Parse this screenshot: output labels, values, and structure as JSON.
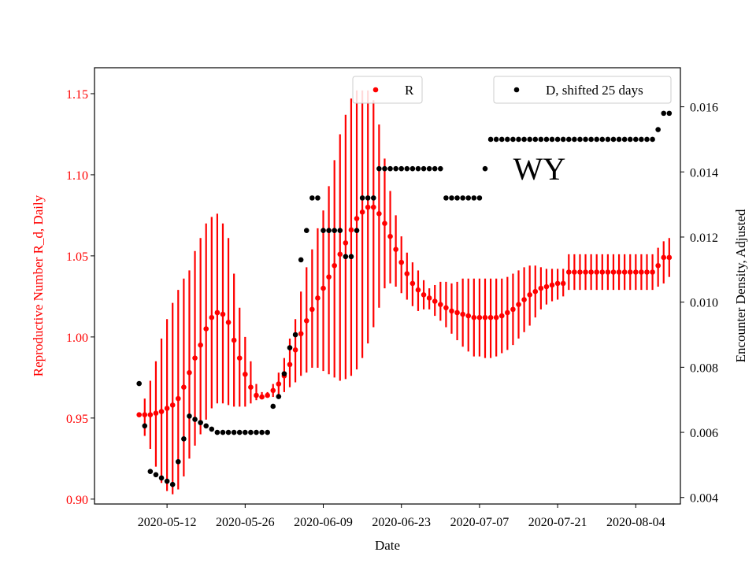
{
  "chart_data": {
    "type": "scatter",
    "xlabel": "Date",
    "ylabel_left": "Reproductive Number R_d, Daily",
    "ylabel_right": "Encounter Density, Adjusted",
    "annotation": "WY",
    "x_ticks": [
      "2020-05-12",
      "2020-05-26",
      "2020-06-09",
      "2020-06-23",
      "2020-07-07",
      "2020-07-21",
      "2020-08-04"
    ],
    "y_left_ticks": [
      "0.90",
      "0.95",
      "1.00",
      "1.05",
      "1.10",
      "1.15"
    ],
    "y_right_ticks": [
      "0.004",
      "0.006",
      "0.008",
      "0.010",
      "0.012",
      "0.014",
      "0.016"
    ],
    "y_left_range": [
      0.897,
      1.166
    ],
    "y_right_range": [
      0.0038,
      0.0172
    ],
    "x_range": [
      "2020-04-29",
      "2020-08-12"
    ],
    "colors": {
      "r_series": "#ff0000",
      "d_series": "#000000",
      "left_axis_text": "#ff0000",
      "right_axis_text": "#000000"
    },
    "legend_left": {
      "label": "R",
      "placement": "top-center"
    },
    "legend_right": {
      "label": "D, shifted 25 days",
      "placement": "top-right"
    },
    "series_r": {
      "name": "R",
      "start_date": "2020-05-07",
      "values": [
        0.952,
        0.952,
        0.952,
        0.953,
        0.954,
        0.956,
        0.958,
        0.962,
        0.969,
        0.978,
        0.987,
        0.995,
        1.005,
        1.012,
        1.015,
        1.014,
        1.009,
        0.998,
        0.987,
        0.977,
        0.969,
        0.964,
        0.963,
        0.964,
        0.967,
        0.971,
        0.976,
        0.983,
        0.992,
        1.002,
        1.01,
        1.017,
        1.024,
        1.03,
        1.037,
        1.044,
        1.051,
        1.058,
        1.066,
        1.073,
        1.077,
        1.08,
        1.08,
        1.076,
        1.07,
        1.062,
        1.054,
        1.046,
        1.039,
        1.033,
        1.029,
        1.026,
        1.024,
        1.022,
        1.02,
        1.018,
        1.016,
        1.015,
        1.014,
        1.013,
        1.012,
        1.012,
        1.012,
        1.012,
        1.012,
        1.013,
        1.015,
        1.017,
        1.02,
        1.023,
        1.026,
        1.028,
        1.03,
        1.031,
        1.032,
        1.033,
        1.033,
        1.04,
        1.04,
        1.04,
        1.04,
        1.04,
        1.04,
        1.04,
        1.04,
        1.04,
        1.04,
        1.04,
        1.04,
        1.04,
        1.04,
        1.04,
        1.04,
        1.044,
        1.049,
        1.049
      ],
      "lower": [
        0.952,
        0.939,
        0.931,
        0.92,
        0.91,
        0.905,
        0.903,
        0.906,
        0.914,
        0.925,
        0.933,
        0.94,
        0.949,
        0.956,
        0.959,
        0.959,
        0.958,
        0.957,
        0.957,
        0.957,
        0.959,
        0.961,
        0.962,
        0.963,
        0.963,
        0.964,
        0.966,
        0.969,
        0.972,
        0.976,
        0.978,
        0.981,
        0.981,
        0.979,
        0.977,
        0.975,
        0.973,
        0.974,
        0.976,
        0.98,
        0.987,
        0.996,
        1.006,
        1.018,
        1.03,
        1.033,
        1.031,
        1.027,
        1.023,
        1.019,
        1.016,
        1.017,
        1.017,
        1.013,
        1.01,
        1.006,
        1.002,
        0.998,
        0.994,
        0.991,
        0.988,
        0.988,
        0.987,
        0.987,
        0.988,
        0.99,
        0.992,
        0.995,
        0.999,
        1.003,
        1.007,
        1.012,
        1.017,
        1.02,
        1.022,
        1.023,
        1.025,
        1.029,
        1.029,
        1.029,
        1.029,
        1.029,
        1.029,
        1.029,
        1.029,
        1.029,
        1.029,
        1.029,
        1.029,
        1.029,
        1.029,
        1.029,
        1.029,
        1.031,
        1.033,
        1.037
      ],
      "upper": [
        0.952,
        0.962,
        0.973,
        0.985,
        0.999,
        1.011,
        1.021,
        1.029,
        1.036,
        1.041,
        1.053,
        1.061,
        1.07,
        1.074,
        1.076,
        1.07,
        1.061,
        1.039,
        1.018,
        1.0,
        0.985,
        0.971,
        0.966,
        0.966,
        0.971,
        0.978,
        0.987,
        0.999,
        1.011,
        1.028,
        1.043,
        1.054,
        1.067,
        1.078,
        1.093,
        1.109,
        1.125,
        1.137,
        1.147,
        1.152,
        1.152,
        1.152,
        1.146,
        1.131,
        1.11,
        1.09,
        1.075,
        1.062,
        1.052,
        1.046,
        1.041,
        1.035,
        1.03,
        1.032,
        1.034,
        1.034,
        1.033,
        1.034,
        1.036,
        1.036,
        1.036,
        1.036,
        1.036,
        1.036,
        1.036,
        1.036,
        1.037,
        1.039,
        1.041,
        1.043,
        1.044,
        1.044,
        1.043,
        1.042,
        1.042,
        1.042,
        1.042,
        1.051,
        1.051,
        1.051,
        1.051,
        1.051,
        1.051,
        1.051,
        1.051,
        1.051,
        1.051,
        1.051,
        1.051,
        1.051,
        1.051,
        1.051,
        1.051,
        1.055,
        1.059,
        1.061
      ]
    },
    "series_d": {
      "name": "D, shifted 25 days",
      "start_date": "2020-05-07",
      "values": [
        0.0075,
        0.0062,
        0.0048,
        0.0047,
        0.0046,
        0.0045,
        0.0044,
        0.0051,
        0.0058,
        0.0065,
        0.0064,
        0.0063,
        0.0062,
        0.0061,
        0.006,
        0.006,
        0.006,
        0.006,
        0.006,
        0.006,
        0.006,
        0.006,
        0.006,
        0.006,
        0.0068,
        0.0071,
        0.0078,
        0.0086,
        0.009,
        0.0113,
        0.0122,
        0.0132,
        0.0132,
        0.0122,
        0.0122,
        0.0122,
        0.0122,
        0.0114,
        0.0114,
        0.0122,
        0.0132,
        0.0132,
        0.0132,
        0.0141,
        0.0141,
        0.0141,
        0.0141,
        0.0141,
        0.0141,
        0.0141,
        0.0141,
        0.0141,
        0.0141,
        0.0141,
        0.0141,
        0.0132,
        0.0132,
        0.0132,
        0.0132,
        0.0132,
        0.0132,
        0.0132,
        0.0141,
        0.015,
        0.015,
        0.015,
        0.015,
        0.015,
        0.015,
        0.015,
        0.015,
        0.015,
        0.015,
        0.015,
        0.015,
        0.015,
        0.015,
        0.015,
        0.015,
        0.015,
        0.015,
        0.015,
        0.015,
        0.015,
        0.015,
        0.015,
        0.015,
        0.015,
        0.015,
        0.015,
        0.015,
        0.015,
        0.015,
        0.0153,
        0.0158,
        0.0158
      ]
    }
  }
}
